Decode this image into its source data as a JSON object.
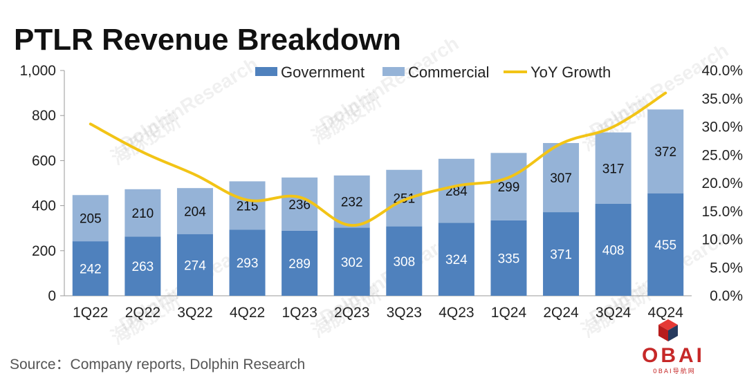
{
  "chart_data": {
    "type": "bar",
    "title": "PTLR Revenue Breakdown",
    "categories": [
      "1Q22",
      "2Q22",
      "3Q22",
      "4Q22",
      "1Q23",
      "2Q23",
      "3Q23",
      "4Q23",
      "1Q24",
      "2Q24",
      "3Q24",
      "4Q24"
    ],
    "series": [
      {
        "name": "Government",
        "kind": "stacked-bar",
        "color": "#4f81bd",
        "values": [
          242,
          263,
          274,
          293,
          289,
          302,
          308,
          324,
          335,
          371,
          408,
          455
        ]
      },
      {
        "name": "Commercial",
        "kind": "stacked-bar",
        "color": "#95b3d7",
        "values": [
          205,
          210,
          204,
          215,
          236,
          232,
          251,
          284,
          299,
          307,
          317,
          372
        ]
      },
      {
        "name": "YoY Growth",
        "kind": "line",
        "axis": "right",
        "color": "#f2c416",
        "values": [
          30.5,
          25.5,
          21.5,
          17.0,
          17.5,
          12.5,
          17.0,
          19.5,
          21.0,
          27.0,
          30.0,
          36.0
        ]
      }
    ],
    "y_left": {
      "min": 0,
      "max": 1000,
      "ticks": [
        0,
        200,
        400,
        600,
        800,
        1000
      ],
      "tick_labels": [
        "0",
        "200",
        "400",
        "600",
        "800",
        "1,000"
      ]
    },
    "y_right": {
      "min": 0,
      "max": 40,
      "ticks": [
        0,
        5,
        10,
        15,
        20,
        25,
        30,
        35,
        40
      ],
      "tick_labels": [
        "0.0%",
        "5.0%",
        "10.0%",
        "15.0%",
        "20.0%",
        "25.0%",
        "30.0%",
        "35.0%",
        "40.0%"
      ]
    },
    "legend_position": "top-right",
    "grid": false
  },
  "footer": {
    "source": "Source：Company reports, Dolphin Research"
  },
  "watermark": {
    "text": "DolphinResearch",
    "cn": "海豚投研"
  },
  "logo": {
    "text": "OBAI",
    "sub": "0BAI导航网",
    "color": "#c62828"
  }
}
